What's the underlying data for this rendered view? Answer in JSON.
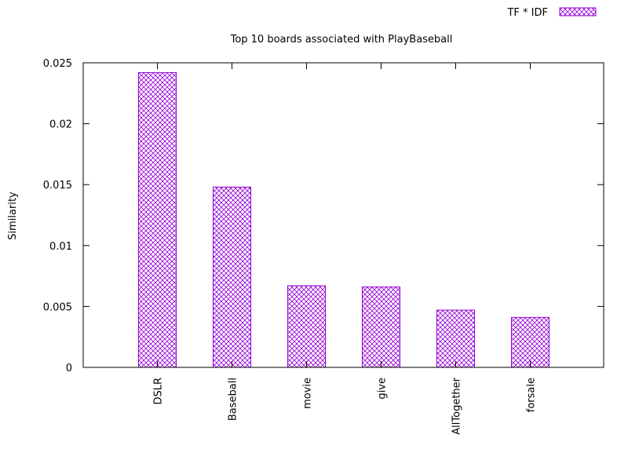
{
  "chart_data": {
    "type": "bar",
    "title": "Top 10 boards associated with PlayBaseball",
    "xlabel": "",
    "ylabel": "Similarity",
    "ylim": [
      0,
      0.025
    ],
    "yticks": [
      "0",
      "0.005",
      "0.01",
      "0.015",
      "0.02",
      "0.025"
    ],
    "categories": [
      "DSLR",
      "Baseball",
      "movie",
      "give",
      "AllTogether",
      "forsale"
    ],
    "series": [
      {
        "name": "TF * IDF",
        "values": [
          0.0242,
          0.0148,
          0.0067,
          0.0066,
          0.0047,
          0.0041
        ]
      }
    ],
    "legend_position": "top-right",
    "grid": false,
    "bar_color": "#9400d3",
    "bar_pattern": "crosshatch"
  }
}
